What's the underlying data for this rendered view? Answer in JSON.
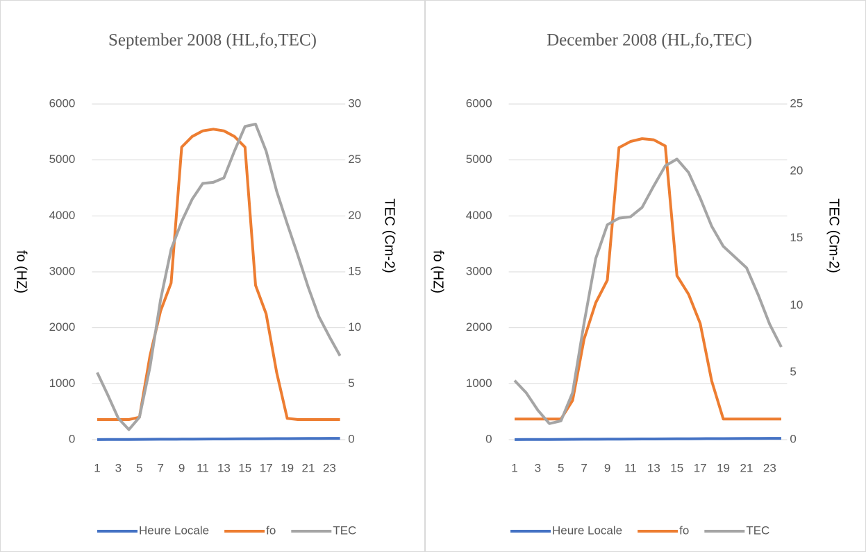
{
  "chart_data": [
    {
      "type": "line",
      "title": "September 2008 (HL,fo,TEC)",
      "categories": [
        1,
        null,
        3,
        null,
        5,
        null,
        7,
        null,
        9,
        null,
        11,
        null,
        13,
        null,
        15,
        null,
        17,
        null,
        19,
        null,
        21,
        null,
        23,
        null
      ],
      "ylabel": "fo (HZ)",
      "y2label": "TEC (Cm-2)",
      "ylim": [
        0,
        6000
      ],
      "yticks": [
        0,
        1000,
        2000,
        3000,
        4000,
        5000,
        6000
      ],
      "y2lim": [
        0,
        30
      ],
      "y2ticks": [
        0,
        5,
        10,
        15,
        20,
        25,
        30
      ],
      "grid": true,
      "legend": "bottom",
      "series": [
        {
          "name": "Heure Locale",
          "color": "#4472c4",
          "values": [
            1,
            2,
            3,
            4,
            5,
            6,
            7,
            8,
            9,
            10,
            11,
            12,
            13,
            14,
            15,
            16,
            17,
            18,
            19,
            20,
            21,
            22,
            23,
            24
          ]
        },
        {
          "name": "fo",
          "color": "#ed7d31",
          "values": [
            360,
            360,
            360,
            360,
            400,
            1500,
            2300,
            2800,
            5230,
            5420,
            5520,
            5550,
            5520,
            5420,
            5230,
            2760,
            2250,
            1200,
            380,
            360,
            360,
            360,
            360,
            360
          ]
        },
        {
          "name": "TEC",
          "color": "#a5a5a5",
          "axis": "y2",
          "values": [
            6.0,
            4.0,
            1.9,
            0.9,
            2.0,
            6.5,
            12.5,
            17,
            19.5,
            21.5,
            22.9,
            23,
            23.4,
            25.8,
            28,
            28.2,
            25.8,
            22.2,
            19.3,
            16.5,
            13.6,
            11,
            9.2,
            7.5
          ]
        }
      ]
    },
    {
      "type": "line",
      "title": "December 2008 (HL,fo,TEC)",
      "categories": [
        1,
        null,
        3,
        null,
        5,
        null,
        7,
        null,
        9,
        null,
        11,
        null,
        13,
        null,
        15,
        null,
        17,
        null,
        19,
        null,
        21,
        null,
        23,
        null
      ],
      "ylabel": "fo (HZ)",
      "y2label": "TEC (Cm-2)",
      "ylim": [
        0,
        6000
      ],
      "yticks": [
        0,
        1000,
        2000,
        3000,
        4000,
        5000,
        6000
      ],
      "y2lim": [
        0,
        25
      ],
      "y2ticks": [
        0,
        5,
        10,
        15,
        20,
        25
      ],
      "grid": true,
      "legend": "bottom",
      "series": [
        {
          "name": "Heure Locale",
          "color": "#4472c4",
          "values": [
            1,
            2,
            3,
            4,
            5,
            6,
            7,
            8,
            9,
            10,
            11,
            12,
            13,
            14,
            15,
            16,
            17,
            18,
            19,
            20,
            21,
            22,
            23,
            24
          ]
        },
        {
          "name": "fo",
          "color": "#ed7d31",
          "values": [
            370,
            370,
            370,
            370,
            370,
            700,
            1800,
            2450,
            2850,
            5220,
            5330,
            5380,
            5360,
            5250,
            2930,
            2600,
            2080,
            1050,
            370,
            370,
            370,
            370,
            370,
            370
          ]
        },
        {
          "name": "TEC",
          "color": "#a5a5a5",
          "axis": "y2",
          "values": [
            4.4,
            3.5,
            2.2,
            1.2,
            1.4,
            3.5,
            8.7,
            13.5,
            16,
            16.5,
            16.6,
            17.3,
            18.9,
            20.4,
            20.9,
            19.9,
            18,
            15.9,
            14.4,
            13.6,
            12.8,
            10.8,
            8.6,
            6.9
          ]
        }
      ]
    }
  ]
}
